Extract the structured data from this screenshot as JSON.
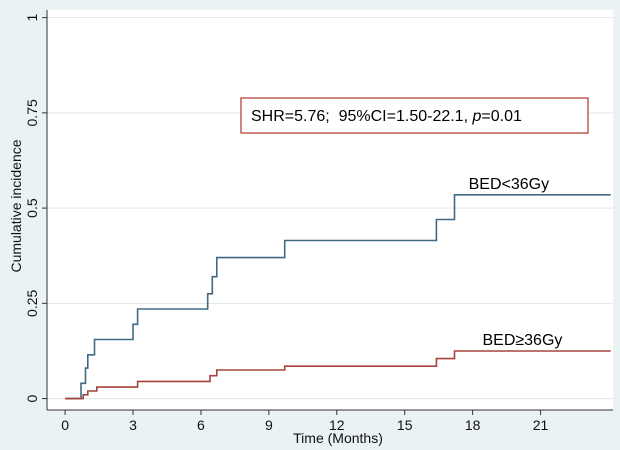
{
  "chart_data": {
    "type": "line",
    "step": true,
    "title": "",
    "xlabel": "Time (Months)",
    "ylabel": "Cumulative incidence",
    "xlim": [
      -0.8,
      24.2
    ],
    "ylim": [
      -0.03,
      1.02
    ],
    "xticks": [
      0,
      3,
      6,
      9,
      12,
      15,
      18,
      21
    ],
    "xtick_labels": [
      "0",
      "3",
      "6",
      "9",
      "12",
      "15",
      "18",
      "21"
    ],
    "yticks": [
      0,
      0.25,
      0.5,
      0.75,
      1
    ],
    "ytick_labels": [
      "0",
      "0.25",
      "0.5",
      "0.75",
      "1"
    ],
    "grid": {
      "horizontal": true,
      "vertical": false
    },
    "legend": "none",
    "colors": {
      "figure_background": "#eaf2f3",
      "plot_background": "#ffffff",
      "grid": "#dfe7ea",
      "axis": "#333333",
      "annotation_border": "#b3443a"
    },
    "series": [
      {
        "name": "BED<36Gy",
        "color": "#3f6a86",
        "x": [
          0,
          0.7,
          0.7,
          0.9,
          0.9,
          1.0,
          1.0,
          1.3,
          1.3,
          3.0,
          3.0,
          3.2,
          3.2,
          6.3,
          6.3,
          6.5,
          6.5,
          6.7,
          6.7,
          9.7,
          9.7,
          16.4,
          16.4,
          17.2,
          17.2,
          24.1
        ],
        "y": [
          0,
          0,
          0.04,
          0.04,
          0.08,
          0.08,
          0.115,
          0.115,
          0.155,
          0.155,
          0.195,
          0.195,
          0.235,
          0.235,
          0.275,
          0.275,
          0.32,
          0.32,
          0.37,
          0.37,
          0.415,
          0.415,
          0.47,
          0.47,
          0.535,
          0.535
        ]
      },
      {
        "name": "BED≥36Gy",
        "color": "#a7433b",
        "x": [
          0,
          0.8,
          0.8,
          1.0,
          1.0,
          1.4,
          1.4,
          3.2,
          3.2,
          6.4,
          6.4,
          6.7,
          6.7,
          9.7,
          9.7,
          16.4,
          16.4,
          17.2,
          17.2,
          24.1
        ],
        "y": [
          0,
          0,
          0.01,
          0.01,
          0.02,
          0.02,
          0.03,
          0.03,
          0.045,
          0.045,
          0.06,
          0.06,
          0.075,
          0.075,
          0.085,
          0.085,
          0.105,
          0.105,
          0.125,
          0.125
        ]
      }
    ],
    "series_labels": [
      {
        "text": "BED<36Gy",
        "x": 19.6,
        "y": 0.55
      },
      {
        "text": "BED≥36Gy",
        "x": 20.2,
        "y": 0.14
      }
    ],
    "annotation": {
      "text_before": "SHR=5.76;  95%CI=1.50-22.1, ",
      "text_p": "p",
      "text_after": "=0.01"
    }
  }
}
